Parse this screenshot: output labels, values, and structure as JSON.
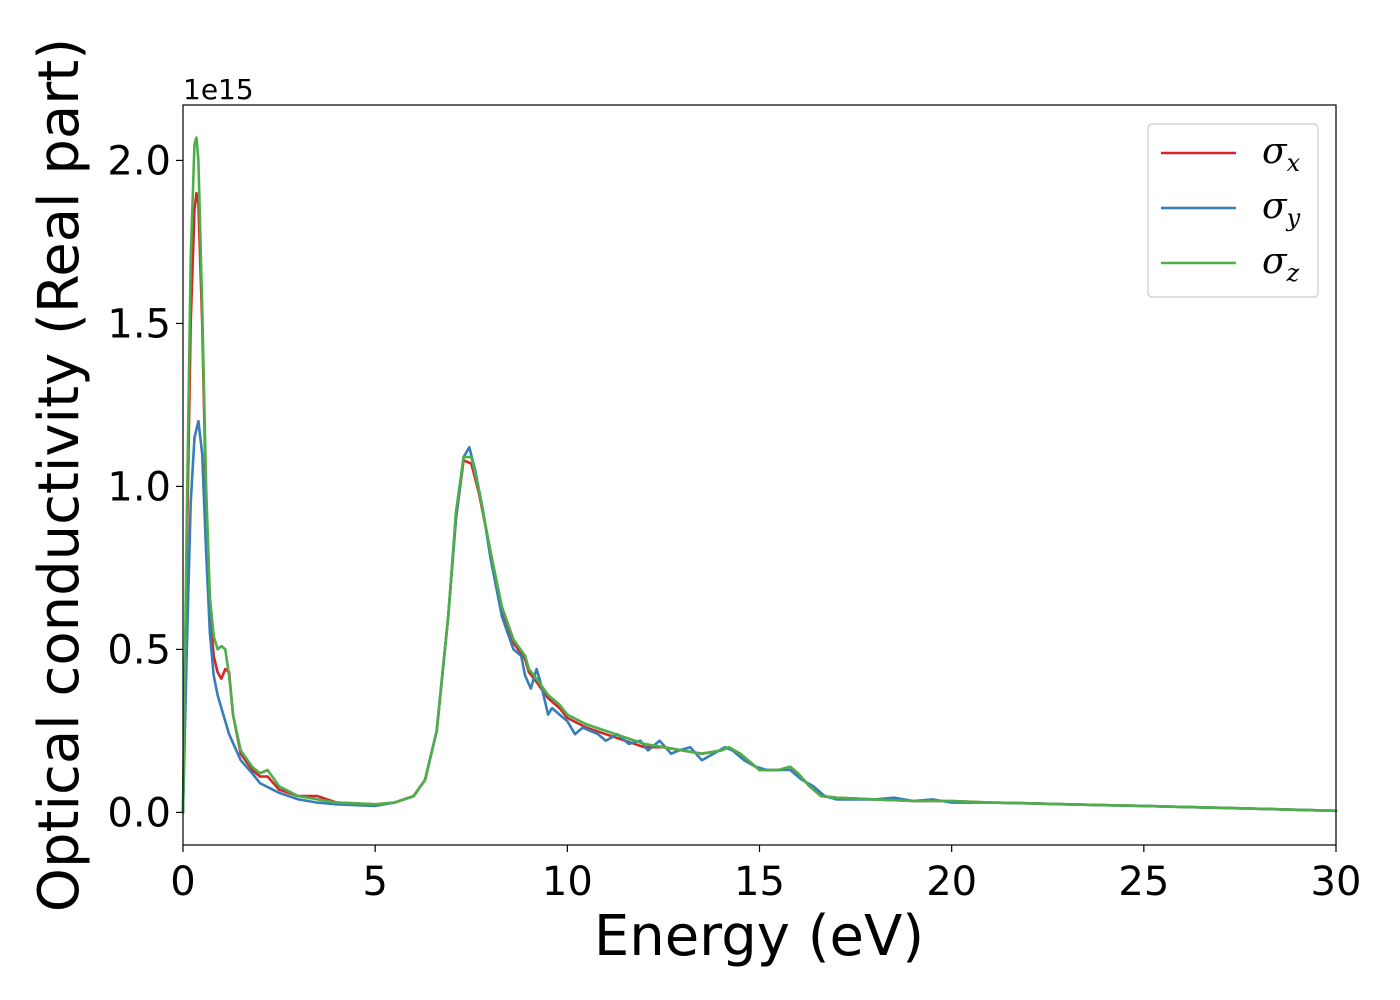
{
  "chart_data": {
    "type": "line",
    "xlabel": "Energy (eV)",
    "ylabel": "Optical conductivity (Real part)",
    "y_offset_label": "1e15",
    "xlim": [
      0,
      30
    ],
    "ylim": [
      -0.1,
      2.17
    ],
    "x_ticks": [
      0,
      5,
      10,
      15,
      20,
      25,
      30
    ],
    "y_ticks": [
      0.0,
      0.5,
      1.0,
      1.5,
      2.0
    ],
    "x_tick_labels": [
      "0",
      "5",
      "10",
      "15",
      "20",
      "25",
      "30"
    ],
    "y_tick_labels": [
      "0.0",
      "0.5",
      "1.0",
      "1.5",
      "2.0"
    ],
    "grid": false,
    "legend_position": "top-right",
    "series": [
      {
        "name": "σx",
        "symbol": "σ",
        "subscript": "x",
        "color": "#d62728",
        "x": [
          0.0,
          0.1,
          0.2,
          0.3,
          0.35,
          0.4,
          0.5,
          0.6,
          0.7,
          0.8,
          0.9,
          1.0,
          1.1,
          1.2,
          1.3,
          1.5,
          1.8,
          2.0,
          2.2,
          2.5,
          3.0,
          3.5,
          4.0,
          5.0,
          5.5,
          6.0,
          6.3,
          6.6,
          6.9,
          7.1,
          7.3,
          7.5,
          7.7,
          8.0,
          8.3,
          8.6,
          8.9,
          9.0,
          9.2,
          9.5,
          9.8,
          10.0,
          10.5,
          11.0,
          11.5,
          12.0,
          12.5,
          13.0,
          13.5,
          14.0,
          14.2,
          14.5,
          14.8,
          15.0,
          15.5,
          15.8,
          16.0,
          16.3,
          16.6,
          17.0,
          18.0,
          19.0,
          20.0,
          21.0,
          22.0,
          23.0,
          24.0,
          25.0,
          26.0,
          27.0,
          28.0,
          29.0,
          30.0
        ],
        "values": [
          0.0,
          0.8,
          1.5,
          1.85,
          1.9,
          1.87,
          1.5,
          0.95,
          0.62,
          0.48,
          0.43,
          0.41,
          0.44,
          0.43,
          0.3,
          0.18,
          0.13,
          0.11,
          0.11,
          0.07,
          0.05,
          0.05,
          0.03,
          0.025,
          0.03,
          0.05,
          0.1,
          0.25,
          0.6,
          0.9,
          1.08,
          1.07,
          0.98,
          0.8,
          0.62,
          0.52,
          0.47,
          0.43,
          0.4,
          0.35,
          0.32,
          0.29,
          0.26,
          0.24,
          0.22,
          0.2,
          0.2,
          0.19,
          0.18,
          0.19,
          0.2,
          0.18,
          0.15,
          0.13,
          0.13,
          0.14,
          0.12,
          0.08,
          0.05,
          0.045,
          0.04,
          0.035,
          0.035,
          0.03,
          0.028,
          0.025,
          0.022,
          0.02,
          0.017,
          0.014,
          0.011,
          0.008,
          0.005
        ]
      },
      {
        "name": "σy",
        "symbol": "σ",
        "subscript": "y",
        "color": "#377eb8",
        "x": [
          0.0,
          0.1,
          0.2,
          0.3,
          0.4,
          0.5,
          0.6,
          0.7,
          0.8,
          0.9,
          1.0,
          1.2,
          1.5,
          1.8,
          2.0,
          2.5,
          3.0,
          3.5,
          4.0,
          5.0,
          5.5,
          6.0,
          6.3,
          6.6,
          6.9,
          7.1,
          7.3,
          7.45,
          7.6,
          7.8,
          8.0,
          8.3,
          8.6,
          8.8,
          8.9,
          9.05,
          9.2,
          9.3,
          9.5,
          9.6,
          9.8,
          10.0,
          10.2,
          10.4,
          10.6,
          10.8,
          11.0,
          11.3,
          11.6,
          11.9,
          12.1,
          12.4,
          12.7,
          12.9,
          13.2,
          13.5,
          13.8,
          14.1,
          14.3,
          14.6,
          14.9,
          15.2,
          15.5,
          15.8,
          16.1,
          16.4,
          16.7,
          17.0,
          18.0,
          18.5,
          19.0,
          19.5,
          20.0,
          21.0,
          22.0,
          23.0,
          24.0,
          25.0,
          26.0,
          27.0,
          28.0,
          29.0,
          30.0
        ],
        "values": [
          0.0,
          0.5,
          0.95,
          1.15,
          1.2,
          1.1,
          0.8,
          0.55,
          0.42,
          0.36,
          0.32,
          0.24,
          0.16,
          0.12,
          0.09,
          0.06,
          0.04,
          0.03,
          0.025,
          0.02,
          0.03,
          0.05,
          0.1,
          0.25,
          0.6,
          0.9,
          1.09,
          1.12,
          1.05,
          0.93,
          0.78,
          0.6,
          0.5,
          0.48,
          0.42,
          0.38,
          0.44,
          0.4,
          0.3,
          0.32,
          0.3,
          0.28,
          0.24,
          0.26,
          0.25,
          0.24,
          0.22,
          0.24,
          0.21,
          0.22,
          0.19,
          0.22,
          0.18,
          0.19,
          0.2,
          0.16,
          0.18,
          0.2,
          0.19,
          0.16,
          0.14,
          0.13,
          0.13,
          0.13,
          0.1,
          0.08,
          0.05,
          0.04,
          0.04,
          0.045,
          0.035,
          0.04,
          0.03,
          0.03,
          0.028,
          0.025,
          0.022,
          0.02,
          0.017,
          0.014,
          0.011,
          0.008,
          0.005
        ]
      },
      {
        "name": "σz",
        "symbol": "σ",
        "subscript": "z",
        "color": "#4daf4a",
        "x": [
          0.0,
          0.1,
          0.2,
          0.3,
          0.35,
          0.4,
          0.5,
          0.6,
          0.7,
          0.8,
          0.9,
          1.0,
          1.1,
          1.2,
          1.3,
          1.5,
          1.8,
          2.0,
          2.2,
          2.5,
          3.0,
          3.5,
          4.0,
          5.0,
          5.5,
          6.0,
          6.3,
          6.6,
          6.9,
          7.1,
          7.3,
          7.5,
          7.7,
          8.0,
          8.3,
          8.6,
          8.9,
          9.0,
          9.2,
          9.5,
          9.8,
          10.0,
          10.5,
          11.0,
          11.5,
          12.0,
          12.5,
          13.0,
          13.5,
          14.0,
          14.2,
          14.5,
          14.8,
          15.0,
          15.5,
          15.8,
          16.0,
          16.3,
          16.6,
          17.0,
          18.0,
          19.0,
          20.0,
          21.0,
          22.0,
          23.0,
          24.0,
          25.0,
          26.0,
          27.0,
          28.0,
          29.0,
          30.0
        ],
        "values": [
          0.0,
          0.9,
          1.7,
          2.05,
          2.07,
          2.0,
          1.55,
          1.0,
          0.66,
          0.54,
          0.5,
          0.51,
          0.5,
          0.42,
          0.3,
          0.19,
          0.14,
          0.12,
          0.13,
          0.08,
          0.05,
          0.04,
          0.03,
          0.025,
          0.03,
          0.05,
          0.1,
          0.25,
          0.6,
          0.92,
          1.09,
          1.09,
          0.99,
          0.8,
          0.63,
          0.53,
          0.48,
          0.44,
          0.41,
          0.36,
          0.33,
          0.3,
          0.27,
          0.25,
          0.23,
          0.21,
          0.2,
          0.19,
          0.18,
          0.19,
          0.2,
          0.18,
          0.15,
          0.13,
          0.13,
          0.14,
          0.12,
          0.08,
          0.05,
          0.045,
          0.04,
          0.035,
          0.035,
          0.03,
          0.028,
          0.025,
          0.022,
          0.02,
          0.017,
          0.014,
          0.011,
          0.008,
          0.005
        ]
      }
    ]
  }
}
